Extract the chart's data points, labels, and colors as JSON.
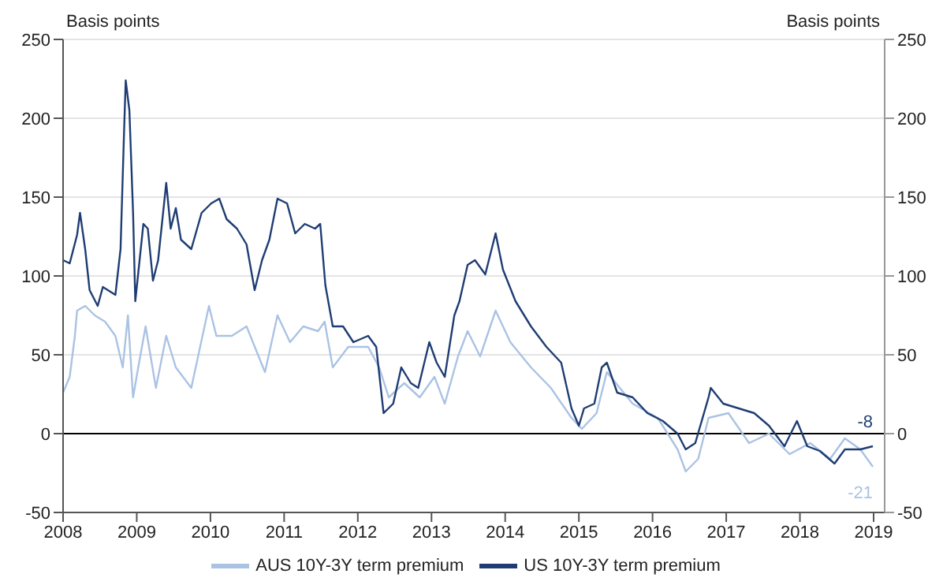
{
  "chart_data": {
    "type": "line",
    "ylabel": "Basis points",
    "y2label": "Basis points",
    "xlim": [
      2008,
      2019.15
    ],
    "xticks": [
      2008,
      2009,
      2010,
      2011,
      2012,
      2013,
      2014,
      2015,
      2016,
      2017,
      2018,
      2019
    ],
    "ylim": [
      -50,
      250
    ],
    "yticks": [
      -50,
      0,
      50,
      100,
      150,
      200,
      250
    ],
    "y2lim": [
      -50,
      250
    ],
    "y2ticks": [
      -50,
      0,
      50,
      100,
      150,
      200,
      250
    ],
    "grid": "y",
    "legend": "bottom",
    "line_style": "solid",
    "marker": "none",
    "ref_lines": [
      {
        "axis": "y",
        "value": 0,
        "color": "#000000"
      }
    ],
    "annotations": [
      {
        "text": "-8",
        "x": 2018.99,
        "y": -8
      },
      {
        "text": "-21",
        "x": 2018.99,
        "y": -21
      }
    ],
    "series": [
      {
        "name": "AUS 10Y-3Y term premium",
        "color": "#aac3e3",
        "x": [
          2008.0,
          2008.09,
          2008.16,
          2008.19,
          2008.3,
          2008.43,
          2008.57,
          2008.71,
          2008.81,
          2008.88,
          2008.95,
          2009.02,
          2009.12,
          2009.26,
          2009.4,
          2009.53,
          2009.74,
          2009.98,
          2010.08,
          2010.29,
          2010.49,
          2010.74,
          2010.91,
          2011.08,
          2011.26,
          2011.46,
          2011.55,
          2011.66,
          2011.87,
          2012.14,
          2012.29,
          2012.42,
          2012.63,
          2012.84,
          2013.04,
          2013.18,
          2013.36,
          2013.49,
          2013.66,
          2013.87,
          2014.07,
          2014.35,
          2014.62,
          2014.9,
          2015.04,
          2015.24,
          2015.38,
          2015.73,
          2016.07,
          2016.34,
          2016.45,
          2016.62,
          2016.76,
          2017.03,
          2017.31,
          2017.58,
          2017.86,
          2018.14,
          2018.41,
          2018.61,
          2018.82,
          2018.99
        ],
        "values": [
          26,
          36,
          62,
          78,
          81,
          75,
          71,
          62,
          42,
          75,
          23,
          42,
          68,
          29,
          62,
          42,
          29,
          81,
          62,
          62,
          68,
          39,
          75,
          58,
          68,
          65,
          71,
          42,
          55,
          55,
          42,
          23,
          32,
          23,
          36,
          19,
          49,
          65,
          49,
          78,
          58,
          42,
          29,
          10,
          3,
          13,
          39,
          19,
          10,
          -10,
          -24,
          -16,
          10,
          13,
          -6,
          0,
          -13,
          -6,
          -16,
          -3,
          -10,
          -21
        ]
      },
      {
        "name": "US 10Y-3Y term premium",
        "color": "#1f3d73",
        "x": [
          2008.0,
          2008.09,
          2008.19,
          2008.23,
          2008.3,
          2008.36,
          2008.47,
          2008.54,
          2008.71,
          2008.78,
          2008.83,
          2008.85,
          2008.9,
          2008.95,
          2008.98,
          2009.09,
          2009.15,
          2009.22,
          2009.29,
          2009.4,
          2009.46,
          2009.53,
          2009.6,
          2009.74,
          2009.88,
          2010.01,
          2010.12,
          2010.22,
          2010.36,
          2010.49,
          2010.6,
          2010.7,
          2010.8,
          2010.91,
          2011.04,
          2011.15,
          2011.28,
          2011.42,
          2011.49,
          2011.56,
          2011.66,
          2011.8,
          2011.94,
          2012.14,
          2012.25,
          2012.35,
          2012.48,
          2012.59,
          2012.72,
          2012.82,
          2012.97,
          2013.07,
          2013.18,
          2013.31,
          2013.38,
          2013.49,
          2013.59,
          2013.73,
          2013.87,
          2013.97,
          2014.14,
          2014.35,
          2014.56,
          2014.76,
          2014.9,
          2015.0,
          2015.07,
          2015.21,
          2015.31,
          2015.38,
          2015.52,
          2015.73,
          2015.93,
          2016.14,
          2016.34,
          2016.45,
          2016.58,
          2016.76,
          2016.79,
          2016.96,
          2017.17,
          2017.38,
          2017.58,
          2017.79,
          2017.96,
          2018.1,
          2018.27,
          2018.47,
          2018.61,
          2018.82,
          2018.99
        ],
        "values": [
          110,
          108,
          126,
          140,
          117,
          91,
          81,
          93,
          88,
          117,
          195,
          224,
          205,
          140,
          84,
          133,
          130,
          97,
          110,
          159,
          130,
          143,
          123,
          117,
          140,
          146,
          149,
          136,
          130,
          120,
          91,
          110,
          123,
          149,
          146,
          127,
          133,
          130,
          133,
          94,
          68,
          68,
          58,
          62,
          55,
          13,
          19,
          42,
          32,
          29,
          58,
          45,
          36,
          75,
          84,
          107,
          110,
          101,
          127,
          104,
          84,
          68,
          55,
          45,
          16,
          5,
          16,
          19,
          42,
          45,
          26,
          23,
          13,
          8,
          0,
          -10,
          -6,
          23,
          29,
          19,
          16,
          13,
          5,
          -8,
          8,
          -8,
          -11,
          -19,
          -10,
          -10,
          -8
        ]
      }
    ]
  }
}
